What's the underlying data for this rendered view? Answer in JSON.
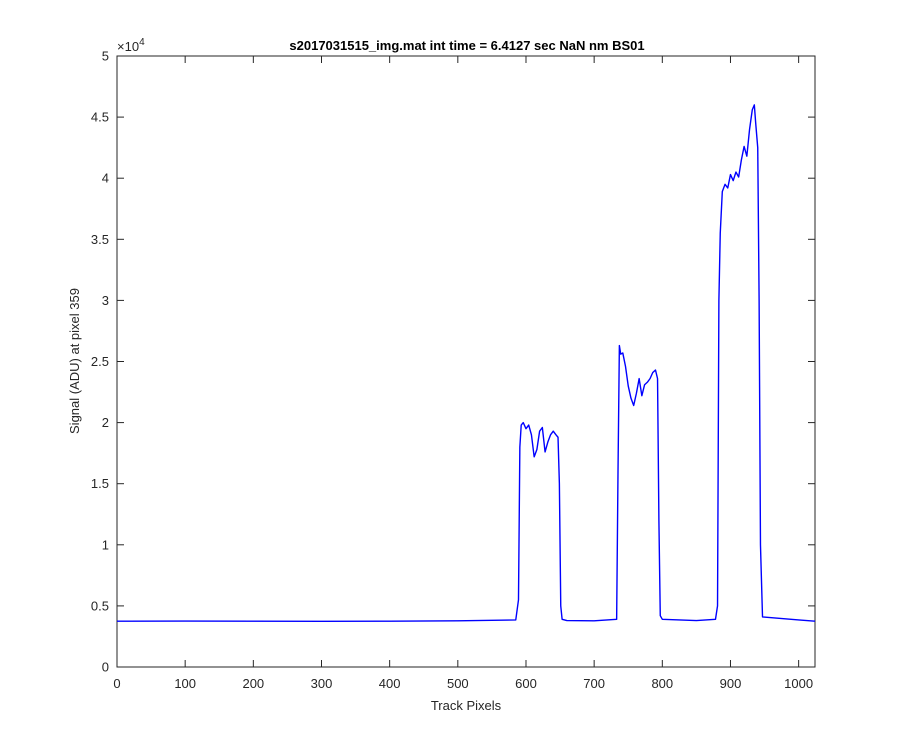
{
  "chart_data": {
    "type": "line",
    "title": "s2017031515_img.mat int time = 6.4127 sec  NaN nm BS01",
    "xlabel": "Track Pixels",
    "ylabel": "Signal (ADU) at pixel 359",
    "xlim": [
      0,
      1024
    ],
    "ylim": [
      0,
      50000
    ],
    "x_ticks": [
      0,
      100,
      200,
      300,
      400,
      500,
      600,
      700,
      800,
      900,
      1000
    ],
    "x_tick_labels": [
      "0",
      "100",
      "200",
      "300",
      "400",
      "500",
      "600",
      "700",
      "800",
      "900",
      "1000"
    ],
    "y_ticks": [
      0,
      5000,
      10000,
      15000,
      20000,
      25000,
      30000,
      35000,
      40000,
      45000,
      50000
    ],
    "y_tick_labels": [
      "0",
      "0.5",
      "1",
      "1.5",
      "2",
      "2.5",
      "3",
      "3.5",
      "4",
      "4.5",
      "5"
    ],
    "y_exponent": {
      "base": "×10",
      "power": "4"
    },
    "grid": false,
    "line_color": "#0000ff",
    "series": [
      {
        "x": [
          0,
          100,
          200,
          300,
          400,
          500,
          585,
          589,
          591,
          593,
          596,
          600,
          604,
          608,
          612,
          616,
          620,
          624,
          628,
          632,
          636,
          640,
          644,
          647,
          649,
          651,
          653,
          660,
          700,
          733,
          735,
          737,
          739,
          742,
          746,
          750,
          754,
          758,
          762,
          766,
          770,
          774,
          778,
          782,
          786,
          790,
          793,
          795,
          797,
          800,
          850,
          878,
          881,
          883,
          885,
          888,
          892,
          896,
          900,
          904,
          908,
          912,
          916,
          920,
          924,
          928,
          932,
          935,
          937,
          940,
          942,
          944,
          947,
          1000,
          1024
        ],
        "y": [
          3750,
          3760,
          3750,
          3740,
          3750,
          3780,
          3850,
          5500,
          18000,
          19800,
          20000,
          19500,
          19800,
          19000,
          17200,
          17800,
          19300,
          19600,
          17600,
          18400,
          19000,
          19300,
          19000,
          18800,
          15000,
          5000,
          3900,
          3800,
          3780,
          3900,
          16000,
          26300,
          25600,
          25700,
          24600,
          23000,
          22000,
          21400,
          22400,
          23600,
          22200,
          23100,
          23300,
          23600,
          24100,
          24300,
          23600,
          12000,
          4200,
          3900,
          3800,
          3900,
          5000,
          30000,
          35500,
          38900,
          39500,
          39200,
          40300,
          39800,
          40500,
          40100,
          41500,
          42600,
          41800,
          44000,
          45600,
          46000,
          44500,
          42500,
          30000,
          10000,
          4100,
          3850,
          3750
        ]
      }
    ]
  }
}
